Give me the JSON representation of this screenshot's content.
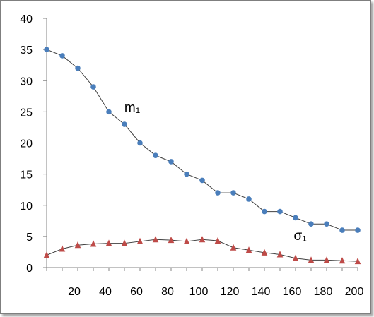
{
  "chart_data": {
    "type": "line",
    "title": "",
    "xlabel": "",
    "ylabel": "",
    "xlim": [
      0,
      200
    ],
    "ylim": [
      0,
      40
    ],
    "x_ticks": [
      20,
      40,
      60,
      80,
      100,
      120,
      140,
      160,
      180,
      200
    ],
    "y_ticks": [
      0,
      5,
      10,
      15,
      20,
      25,
      30,
      35,
      40
    ],
    "grid": false,
    "legend": "none",
    "x": [
      0,
      10,
      20,
      30,
      40,
      50,
      60,
      70,
      80,
      90,
      100,
      110,
      120,
      130,
      140,
      150,
      160,
      170,
      180,
      190,
      200
    ],
    "series": [
      {
        "marker": "circle",
        "color": "#4a7ebb",
        "values": [
          35,
          34,
          32,
          29,
          25,
          23,
          20,
          18,
          17,
          15,
          14,
          12,
          12,
          11,
          9,
          9,
          8,
          7,
          7,
          6,
          6
        ]
      },
      {
        "marker": "triangle",
        "color": "#be4b48",
        "values": [
          2,
          3,
          3.6,
          3.8,
          3.9,
          3.9,
          4.2,
          4.5,
          4.4,
          4.2,
          4.5,
          4.3,
          3.2,
          2.8,
          2.4,
          2.1,
          1.5,
          1.2,
          1.2,
          1.1,
          1.0
        ]
      }
    ],
    "annotations": [
      {
        "text": "m₁",
        "x": 55,
        "y": 25
      },
      {
        "text": "σ₁",
        "x": 163,
        "y": 4.4
      }
    ]
  }
}
